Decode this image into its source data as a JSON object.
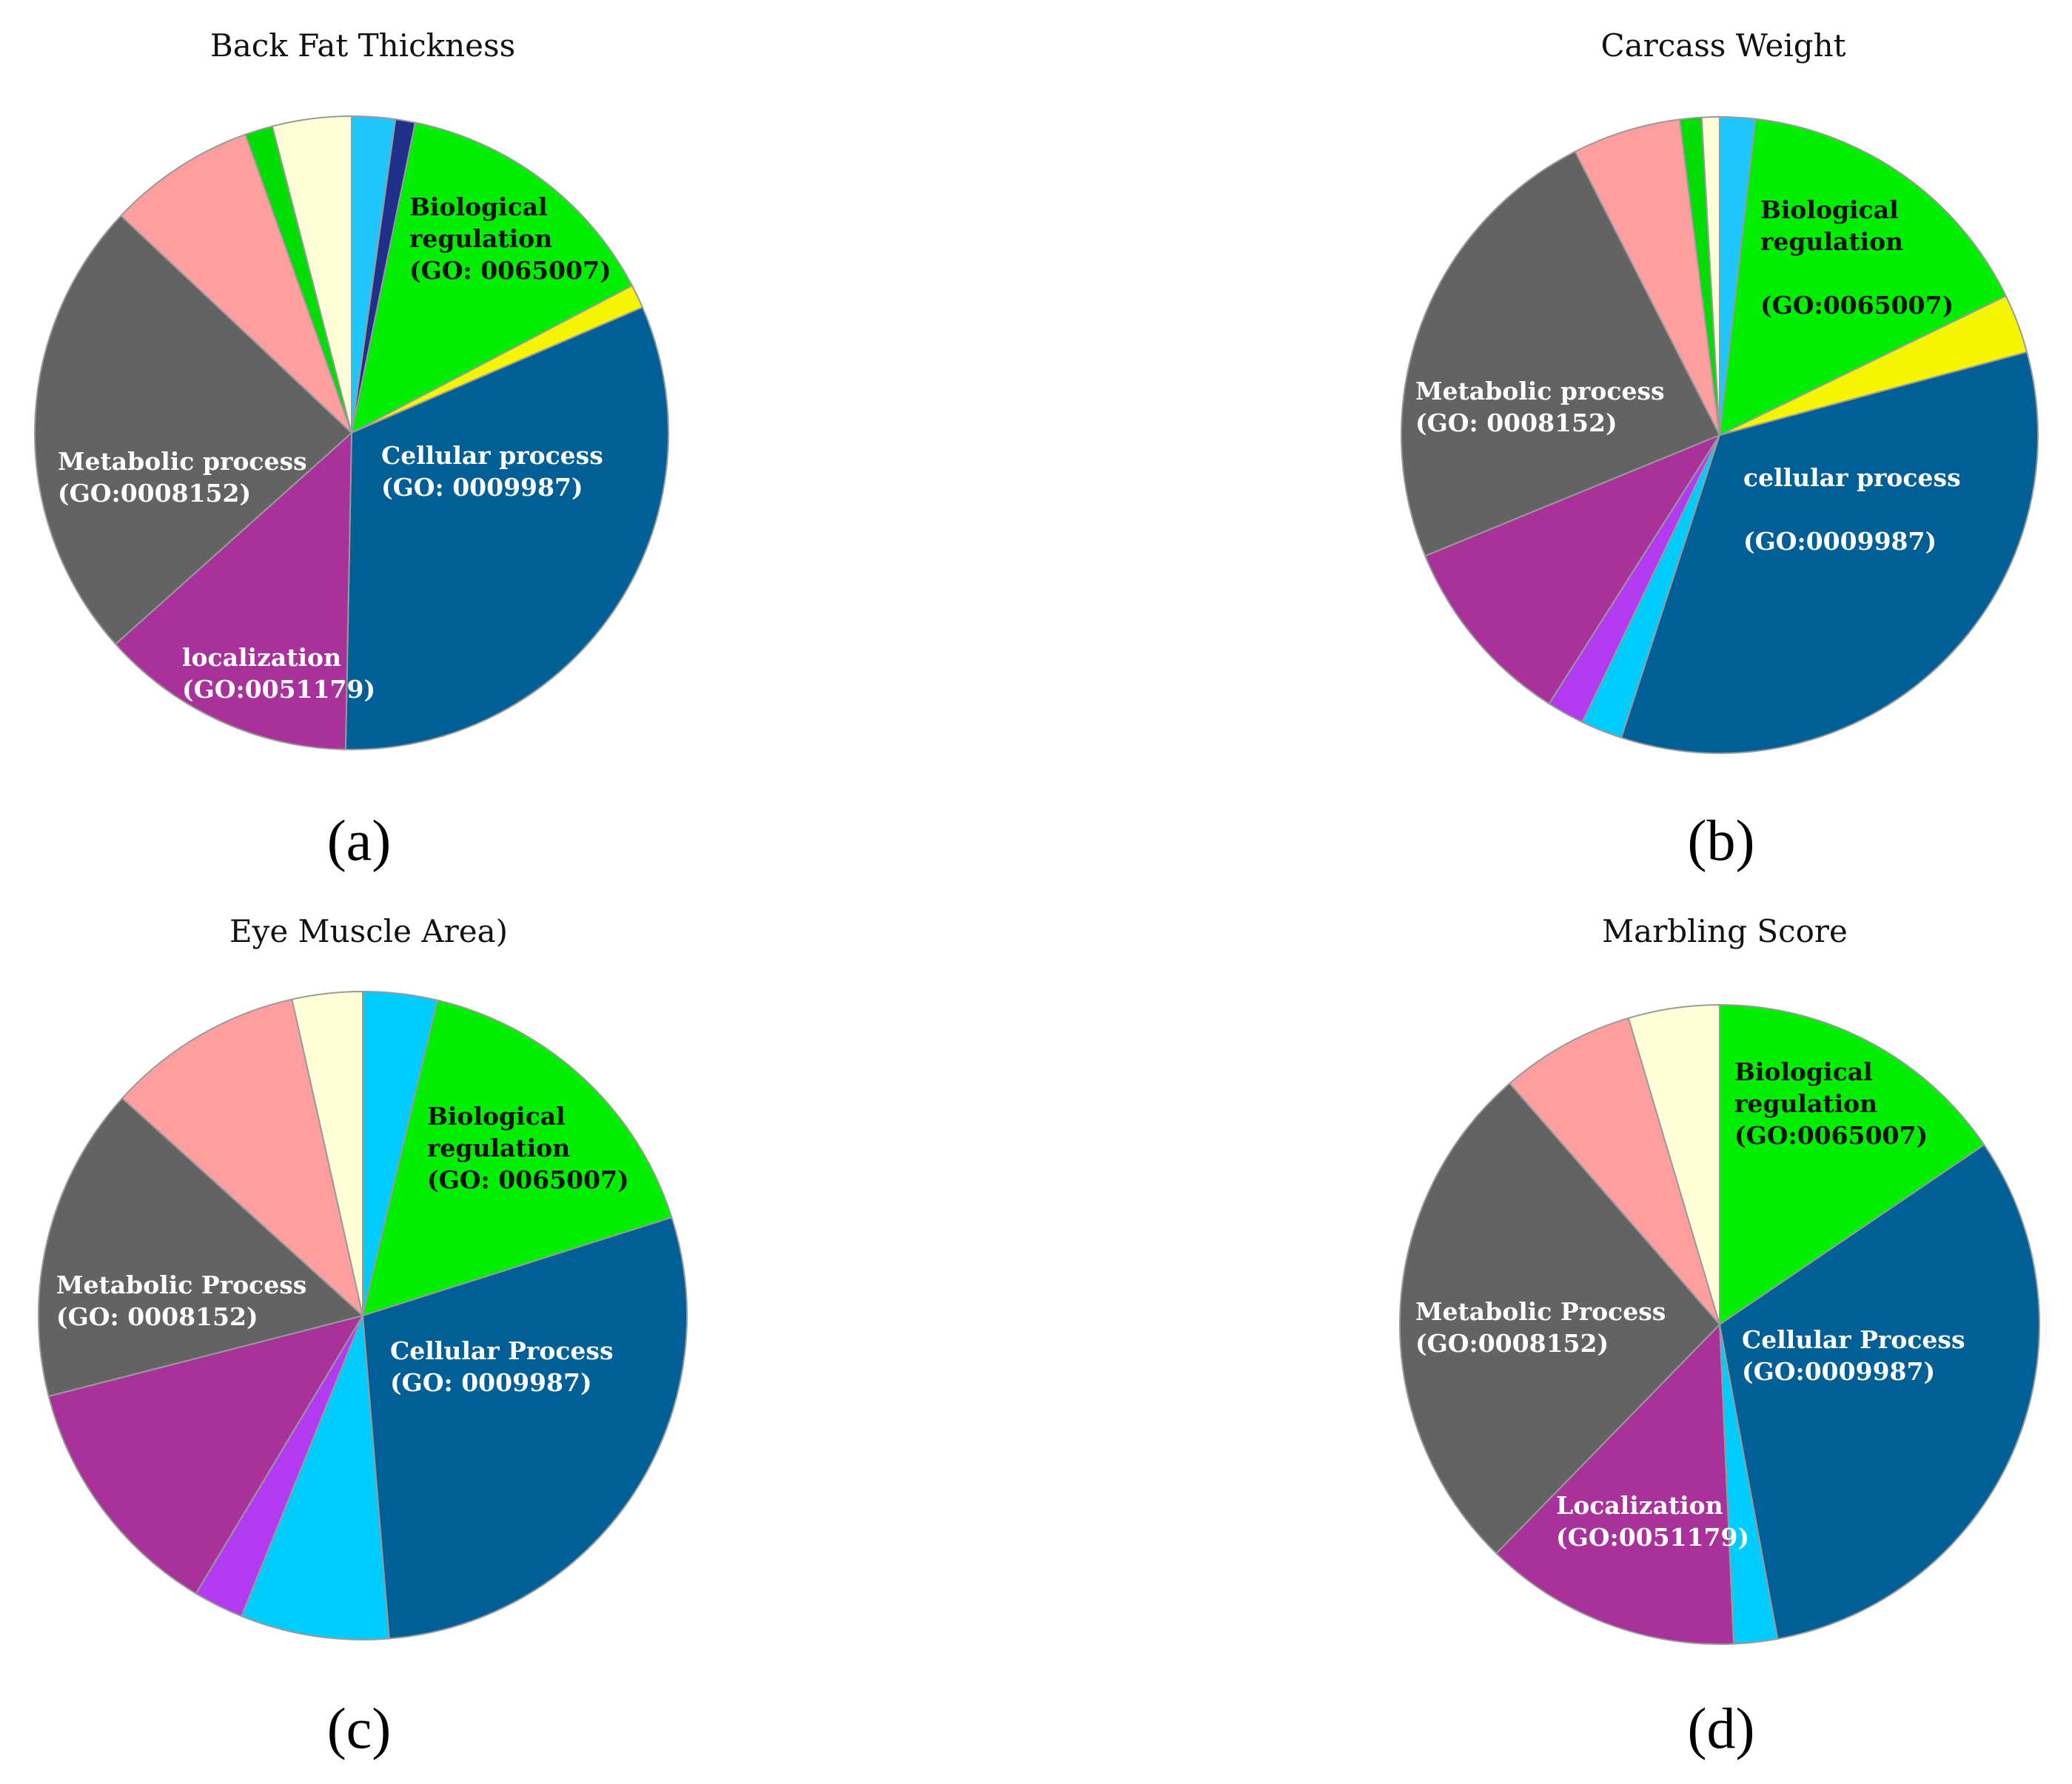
{
  "figure": {
    "panels": [
      {
        "id": "a",
        "label": "(a)"
      },
      {
        "id": "b",
        "label": "(b)"
      },
      {
        "id": "c",
        "label": "(c)"
      },
      {
        "id": "d",
        "label": "(d)"
      }
    ]
  },
  "chart_data": [
    {
      "panel": "(a)",
      "type": "pie",
      "title": "Back Fat Thickness",
      "start_angle_deg": 0,
      "direction": "clockwise",
      "slices": [
        {
          "value": 2.2,
          "color": "#1ec8ff",
          "label": []
        },
        {
          "value": 1.0,
          "color": "#1f2f8a",
          "label": []
        },
        {
          "value": 14.0,
          "color": "#00ee00",
          "label": [
            "Biological",
            "regulation",
            "(GO: 0065007)"
          ],
          "label_color": "#111111"
        },
        {
          "value": 1.2,
          "color": "#f5f500",
          "label": []
        },
        {
          "value": 31.6,
          "color": "#005f96",
          "label": [
            "Cellular process",
            "(GO: 0009987)"
          ],
          "label_color": "#ffffff"
        },
        {
          "value": 13.0,
          "color": "#a9319a",
          "label": [
            "localization",
            "(GO:0051179)"
          ],
          "label_color": "#ffffff"
        },
        {
          "value": 23.5,
          "color": "#636363",
          "label": [
            "Metabolic process",
            "(GO:0008152)"
          ],
          "label_color": "#ffffff"
        },
        {
          "value": 7.5,
          "color": "#ff9e9e",
          "label": []
        },
        {
          "value": 1.4,
          "color": "#00dd00",
          "label": []
        },
        {
          "value": 4.0,
          "color": "#ffffd8",
          "label": []
        }
      ]
    },
    {
      "panel": "(b)",
      "type": "pie",
      "title": "Carcass Weight",
      "start_angle_deg": 0,
      "direction": "clockwise",
      "slices": [
        {
          "value": 1.8,
          "color": "#1ec8ff",
          "label": []
        },
        {
          "value": 16.0,
          "color": "#00ee00",
          "label": [
            "Biological",
            "regulation",
            "",
            "(GO:0065007)"
          ],
          "label_color": "#111111"
        },
        {
          "value": 3.0,
          "color": "#f5f500",
          "label": []
        },
        {
          "value": 34.2,
          "color": "#005f96",
          "label": [
            "cellular process",
            "",
            "(GO:0009987)"
          ],
          "label_color": "#ffffff"
        },
        {
          "value": 2.1,
          "color": "#00ccff",
          "label": []
        },
        {
          "value": 1.9,
          "color": "#b23bf2",
          "label": []
        },
        {
          "value": 9.8,
          "color": "#a9319a",
          "label": []
        },
        {
          "value": 23.7,
          "color": "#636363",
          "label": [
            "Metabolic process",
            "(GO: 0008152)"
          ],
          "label_color": "#ffffff"
        },
        {
          "value": 5.5,
          "color": "#ff9e9e",
          "label": []
        },
        {
          "value": 1.1,
          "color": "#00dd00",
          "label": []
        },
        {
          "value": 0.9,
          "color": "#ffffd8",
          "label": []
        }
      ]
    },
    {
      "panel": "(c)",
      "type": "pie",
      "title": "Eye Muscle Area)",
      "start_angle_deg": 0,
      "direction": "clockwise",
      "slices": [
        {
          "value": 3.7,
          "color": "#00ccff",
          "label": []
        },
        {
          "value": 16.4,
          "color": "#00ee00",
          "label": [
            "Biological",
            "regulation",
            "(GO: 0065007)"
          ],
          "label_color": "#111111"
        },
        {
          "value": 28.6,
          "color": "#005f96",
          "label": [
            "Cellular Process",
            "(GO: 0009987)"
          ],
          "label_color": "#ffffff"
        },
        {
          "value": 7.4,
          "color": "#00ccff",
          "label": []
        },
        {
          "value": 2.5,
          "color": "#b23bf2",
          "label": []
        },
        {
          "value": 12.4,
          "color": "#a9319a",
          "label": []
        },
        {
          "value": 15.7,
          "color": "#636363",
          "label": [
            "Metabolic Process",
            "(GO: 0008152)"
          ],
          "label_color": "#ffffff"
        },
        {
          "value": 9.8,
          "color": "#ff9e9e",
          "label": []
        },
        {
          "value": 3.5,
          "color": "#ffffd8",
          "label": []
        }
      ]
    },
    {
      "panel": "(d)",
      "type": "pie",
      "title": "Marbling Score",
      "start_angle_deg": 0,
      "direction": "clockwise",
      "slices": [
        {
          "value": 15.5,
          "color": "#00ee00",
          "label": [
            "Biological",
            "regulation",
            "(GO:0065007)"
          ],
          "label_color": "#111111"
        },
        {
          "value": 31.6,
          "color": "#005f96",
          "label": [
            "Cellular Process",
            "(GO:0009987)"
          ],
          "label_color": "#ffffff"
        },
        {
          "value": 2.2,
          "color": "#00ccff",
          "label": []
        },
        {
          "value": 13.0,
          "color": "#a9319a",
          "label": [
            "Localization",
            "(GO:0051179)"
          ],
          "label_color": "#ffffff"
        },
        {
          "value": 26.3,
          "color": "#636363",
          "label": [
            "Metabolic Process",
            "(GO:0008152)"
          ],
          "label_color": "#ffffff"
        },
        {
          "value": 6.8,
          "color": "#ff9e9e",
          "label": []
        },
        {
          "value": 4.6,
          "color": "#ffffd8",
          "label": []
        }
      ]
    }
  ]
}
